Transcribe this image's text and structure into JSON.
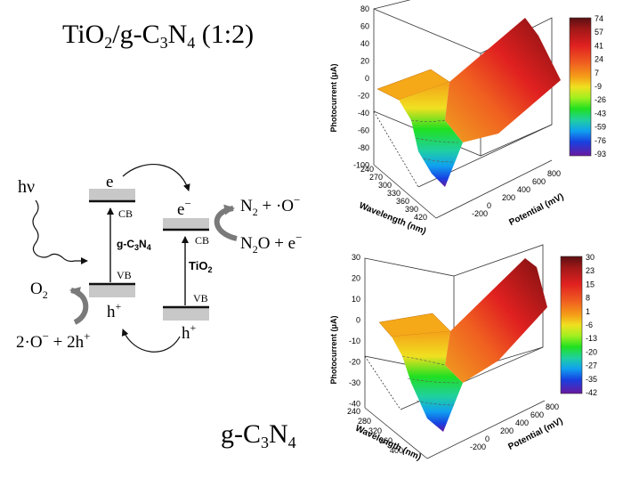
{
  "title_top": {
    "main": "TiO",
    "sub1": "2",
    "mid": "/g-C",
    "sub2": "3",
    "mid2": "N",
    "sub3": "4",
    "tail": " (1:2)"
  },
  "title_bottom": {
    "main": "g-C",
    "sub1": "3",
    "mid": "N",
    "sub2": "4"
  },
  "scheme": {
    "hv": "hν",
    "gcn": {
      "e": "e",
      "eminus": "−",
      "cb": "CB",
      "vb": "VB",
      "label_main": "g-C",
      "label_sub1": "3",
      "label_mid": "N",
      "label_sub2": "4",
      "h": "h",
      "hplus": "+"
    },
    "tio2": {
      "e": "e",
      "eminus": "−",
      "cb": "CB",
      "vb": "VB",
      "label_main": "TiO",
      "label_sub": "2",
      "h": "h",
      "hplus": "+"
    },
    "n2_reaction": {
      "n2": "N",
      "n2_sub": "2",
      "plus_o": " + ·O",
      "o_minus": "−"
    },
    "n2o_reaction": {
      "n2o": "N",
      "n2o_sub": "2",
      "n2o_tail": "O + e",
      "e_minus": "−"
    },
    "o2_label": {
      "o": "O",
      "sub": "2"
    },
    "o_reaction": {
      "t1": "2·O",
      "sup1": "−",
      "t2": " + 2h",
      "sup2": "+"
    }
  },
  "colors": {
    "black": "#111111",
    "band_gray": "#c8c8c8",
    "arrow_gray": "#7a7a7a",
    "scale": [
      "#5a0f12",
      "#a01818",
      "#e02020",
      "#f06020",
      "#f5a018",
      "#f0e020",
      "#a0f020",
      "#20e020",
      "#20d0a0",
      "#10a0f0",
      "#1840e0",
      "#5020c0",
      "#6a18a0"
    ]
  },
  "chart_data": [
    {
      "type": "surface3d",
      "zlabel": "Photocurrent (μA)",
      "xlabel": "Wavelength (nm)",
      "ylabel": "Potential (mV)",
      "z_ticks": [
        "80",
        "60",
        "40",
        "20",
        "0",
        "-20",
        "-40",
        "-60",
        "-80",
        "-100"
      ],
      "x_ticks": [
        "240",
        "270",
        "300",
        "330",
        "360",
        "390",
        "420"
      ],
      "y_ticks": [
        "-200",
        "0",
        "200",
        "400",
        "600",
        "800"
      ],
      "zlim": [
        -100,
        80
      ],
      "colorbar": [
        "74",
        "57",
        "41",
        "24",
        "7",
        "-9",
        "-26",
        "-43",
        "-59",
        "-76",
        "-93"
      ]
    },
    {
      "type": "surface3d",
      "zlabel": "Photocurrent (μA)",
      "xlabel": "Wavelength (nm)",
      "ylabel": "Potential (mV)",
      "z_ticks": [
        "30",
        "20",
        "10",
        "0",
        "-10",
        "-20",
        "-30",
        "-40"
      ],
      "x_ticks": [
        "240",
        "280",
        "320",
        "360",
        "400"
      ],
      "y_ticks": [
        "-200",
        "0",
        "200",
        "400",
        "600",
        "800"
      ],
      "zlim": [
        -40,
        30
      ],
      "colorbar": [
        "30",
        "23",
        "15",
        "8",
        "1",
        "-6",
        "-13",
        "-20",
        "-27",
        "-35",
        "-42"
      ]
    }
  ]
}
